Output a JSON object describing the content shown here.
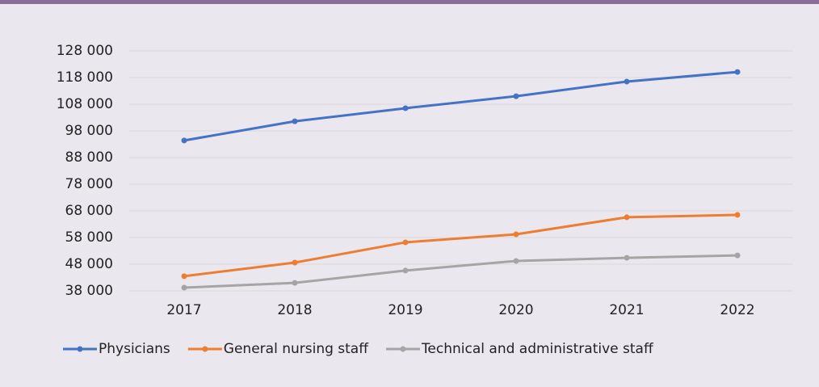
{
  "chart_data": {
    "type": "line",
    "categories": [
      "2017",
      "2018",
      "2019",
      "2020",
      "2021",
      "2022"
    ],
    "series": [
      {
        "name": "Physicians",
        "color": "#4472c4",
        "values": [
          94400,
          101600,
          106500,
          111000,
          116500,
          120100
        ]
      },
      {
        "name": "General nursing staff",
        "color": "#ed7d31",
        "values": [
          43500,
          48600,
          56200,
          59200,
          65600,
          66500
        ]
      },
      {
        "name": "Technical and administrative staff",
        "color": "#a5a5a5",
        "values": [
          39200,
          41000,
          45600,
          49200,
          50400,
          51300
        ]
      }
    ],
    "ylim": [
      38000,
      128000
    ],
    "yticks": [
      {
        "value": 38000,
        "label": "38 000"
      },
      {
        "value": 48000,
        "label": "48 000"
      },
      {
        "value": 58000,
        "label": "58 000"
      },
      {
        "value": 68000,
        "label": "68 000"
      },
      {
        "value": 78000,
        "label": "78 000"
      },
      {
        "value": 88000,
        "label": "88 000"
      },
      {
        "value": 98000,
        "label": "98 000"
      },
      {
        "value": 108000,
        "label": "108 000"
      },
      {
        "value": 118000,
        "label": "118 000"
      },
      {
        "value": 128000,
        "label": "128 000"
      }
    ],
    "grid": true,
    "legend": "bottom"
  }
}
